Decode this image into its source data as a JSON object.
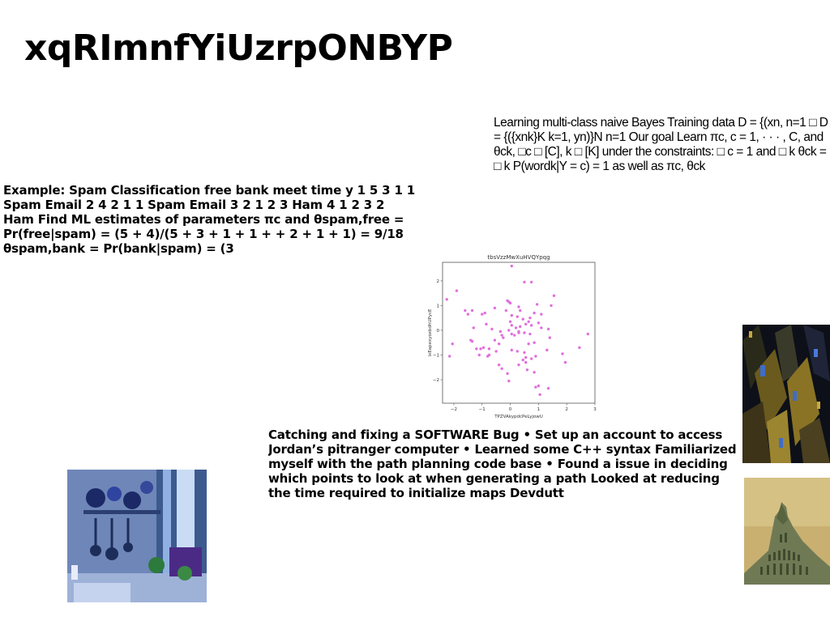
{
  "page": {
    "title": "xqRImnfYiUzrpONBYP"
  },
  "text_blocks": {
    "bayes": "Learning multi-class naive Bayes Training data D = {(xn, n=1 □ D = {({xnk}K k=1, yn)}N n=1 Our goal Learn πc, c = 1, · · · , C, and θck, □c □ [C], k □ [K] under the constraints: □ c = 1 and □ k θck = □ k P(wordk|Y = c) = 1 as well as πc, θck",
    "spam": "Example: Spam Classification free bank meet time y 1 5 3 1 1 Spam Email 2 4 2 1 1 Spam Email 3 2 1 2 3 Ham 4 1 2 3 2 Ham Find ML estimates of parameters πc and θspam,free = Pr(free|spam) = (5 + 4)/(5 + 3 + 1 + 1 + + 2 + 1 + 1) = 9/18 θspam,bank = Pr(bank|spam) = (3",
    "bug": "Catching and fixing a SOFTWARE Bug • Set up an account to access Jordan’s pitranger computer • Learned some C++ syntax Familiarized myself with the path planning code base • Found a issue in deciding which points to look at when generating a path Looked at reducing the time required to initialize maps Devdutt"
  },
  "images": {
    "kitchen": "photo-kitchen-shelves",
    "city": "photo-abstract-city",
    "building": "photo-green-building"
  },
  "chart_data": {
    "type": "scatter",
    "title": "tbsVzzMwXuHVQYpqg",
    "xlabel": "TPZVAkypdcPeLyjowU",
    "ylabel": "ixEapexyoxbdhUPycE",
    "xlim": [
      -2.4,
      3.0
    ],
    "ylim": [
      -2.95,
      2.75
    ],
    "xticks": [
      -2,
      -1,
      0,
      1,
      2,
      3
    ],
    "yticks": [
      -2,
      -1,
      0,
      1,
      2
    ],
    "xtick_labels": [
      "−2",
      "−1",
      "0",
      "1",
      "2",
      "3"
    ],
    "ytick_labels": [
      "−2",
      "−1",
      "0",
      "1",
      "2"
    ],
    "grid": false,
    "color": "#e070dd",
    "points": [
      [
        0.05,
        2.6
      ],
      [
        -1.9,
        1.6
      ],
      [
        0.5,
        1.95
      ],
      [
        0.75,
        1.95
      ],
      [
        -2.25,
        1.25
      ],
      [
        -1.35,
        0.8
      ],
      [
        -1.6,
        0.8
      ],
      [
        -1.5,
        0.65
      ],
      [
        -0.9,
        0.7
      ],
      [
        -1.0,
        0.65
      ],
      [
        -0.55,
        0.9
      ],
      [
        -0.1,
        1.2
      ],
      [
        -0.05,
        1.15
      ],
      [
        0.0,
        1.1
      ],
      [
        -0.15,
        0.8
      ],
      [
        0.05,
        0.6
      ],
      [
        0.3,
        0.95
      ],
      [
        0.35,
        0.8
      ],
      [
        0.25,
        0.55
      ],
      [
        0.45,
        0.45
      ],
      [
        0.65,
        0.35
      ],
      [
        0.7,
        0.5
      ],
      [
        0.95,
        1.05
      ],
      [
        1.1,
        0.65
      ],
      [
        0.85,
        0.7
      ],
      [
        1.45,
        1.0
      ],
      [
        1.55,
        1.4
      ],
      [
        0.0,
        0.35
      ],
      [
        0.05,
        0.2
      ],
      [
        0.2,
        0.1
      ],
      [
        0.35,
        0.15
      ],
      [
        0.55,
        0.25
      ],
      [
        0.75,
        0.2
      ],
      [
        0.05,
        -0.15
      ],
      [
        0.15,
        -0.2
      ],
      [
        0.3,
        -0.1
      ],
      [
        0.5,
        -0.1
      ],
      [
        0.7,
        -0.15
      ],
      [
        1.0,
        0.3
      ],
      [
        1.1,
        0.1
      ],
      [
        1.35,
        0.05
      ],
      [
        1.4,
        -0.3
      ],
      [
        -0.85,
        0.25
      ],
      [
        -1.3,
        0.1
      ],
      [
        -0.65,
        0.05
      ],
      [
        -0.35,
        -0.05
      ],
      [
        -0.3,
        -0.2
      ],
      [
        -2.05,
        -0.55
      ],
      [
        -1.35,
        -0.45
      ],
      [
        -1.4,
        -0.4
      ],
      [
        -0.55,
        -0.4
      ],
      [
        -0.4,
        -0.55
      ],
      [
        -0.95,
        -0.7
      ],
      [
        -1.2,
        -0.75
      ],
      [
        -1.05,
        -0.75
      ],
      [
        -0.75,
        -0.75
      ],
      [
        -0.5,
        -0.85
      ],
      [
        -0.75,
        -1.0
      ],
      [
        -2.15,
        -1.05
      ],
      [
        -1.1,
        -1.0
      ],
      [
        -0.8,
        -1.05
      ],
      [
        0.25,
        -0.85
      ],
      [
        0.5,
        -0.9
      ],
      [
        0.55,
        -1.1
      ],
      [
        0.75,
        -1.15
      ],
      [
        0.45,
        -1.2
      ],
      [
        0.3,
        -1.4
      ],
      [
        0.55,
        -1.3
      ],
      [
        0.9,
        -1.05
      ],
      [
        0.85,
        -0.5
      ],
      [
        0.65,
        -0.55
      ],
      [
        1.3,
        -0.8
      ],
      [
        1.85,
        -0.95
      ],
      [
        1.95,
        -1.3
      ],
      [
        2.45,
        -0.7
      ],
      [
        2.75,
        -0.15
      ],
      [
        0.05,
        -0.8
      ],
      [
        -0.4,
        -1.4
      ],
      [
        -0.3,
        -1.55
      ],
      [
        -0.1,
        -1.75
      ],
      [
        -0.05,
        -2.05
      ],
      [
        0.6,
        -1.6
      ],
      [
        0.85,
        -1.7
      ],
      [
        1.0,
        -2.25
      ],
      [
        0.9,
        -2.3
      ],
      [
        1.05,
        -2.6
      ],
      [
        1.35,
        -2.35
      ],
      [
        0.3,
        -0.05
      ],
      [
        -0.05,
        0.0
      ],
      [
        -0.25,
        -0.3
      ]
    ]
  }
}
